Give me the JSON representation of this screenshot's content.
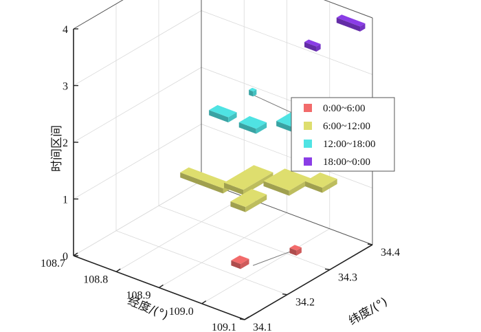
{
  "chart_data": {
    "type": "scatter",
    "title": "",
    "xlabel": "经度/(°)",
    "ylabel": "纬度/(°)",
    "zlabel": "时间区间",
    "xlim": [
      108.7,
      109.1
    ],
    "ylim": [
      34.1,
      34.4
    ],
    "zlim": [
      0,
      4
    ],
    "x_ticks": [
      "108.7",
      "108.8",
      "108.9",
      "109.0",
      "109.1"
    ],
    "y_ticks": [
      "34.1",
      "34.2",
      "34.3",
      "34.4"
    ],
    "z_ticks": [
      "0",
      "1",
      "2",
      "3",
      "4"
    ],
    "grid": true,
    "legend_position": "right",
    "series": [
      {
        "name": "0:00~6:00",
        "color": "#f26b6b",
        "z": 0,
        "clusters": [
          {
            "x": 108.96,
            "y": 34.23,
            "w": 0.022,
            "d": 0.02
          },
          {
            "x": 109.01,
            "y": 34.31,
            "w": 0.016,
            "d": 0.012
          }
        ],
        "links": [
          [
            108.98,
            34.24,
            109.0,
            34.31
          ]
        ]
      },
      {
        "name": "6:00~12:00",
        "color": "#dede6e",
        "z": 1,
        "clusters": [
          {
            "x": 108.85,
            "y": 34.26,
            "w": 0.1,
            "d": 0.02
          },
          {
            "x": 108.91,
            "y": 34.3,
            "w": 0.045,
            "d": 0.07
          },
          {
            "x": 108.97,
            "y": 34.33,
            "w": 0.06,
            "d": 0.05
          },
          {
            "x": 108.96,
            "y": 34.25,
            "w": 0.035,
            "d": 0.05
          },
          {
            "x": 109.02,
            "y": 34.36,
            "w": 0.04,
            "d": 0.035
          }
        ],
        "links": []
      },
      {
        "name": "12:00~18:00",
        "color": "#4fe3e3",
        "z": 2,
        "clusters": [
          {
            "x": 108.85,
            "y": 34.3,
            "w": 0.045,
            "d": 0.02
          },
          {
            "x": 108.92,
            "y": 34.3,
            "w": 0.04,
            "d": 0.025
          },
          {
            "x": 108.98,
            "y": 34.35,
            "w": 0.06,
            "d": 0.05
          },
          {
            "x": 109.02,
            "y": 34.37,
            "w": 0.035,
            "d": 0.03
          },
          {
            "x": 108.99,
            "y": 34.42,
            "w": 0.012,
            "d": 0.01
          },
          {
            "x": 108.84,
            "y": 34.38,
            "w": 0.01,
            "d": 0.008
          }
        ],
        "links": [
          [
            108.84,
            34.38,
            108.96,
            34.37
          ]
        ]
      },
      {
        "name": "18:00~0:00",
        "color": "#8a3de6",
        "z": 3,
        "clusters": [
          {
            "x": 108.95,
            "y": 34.41,
            "w": 0.028,
            "d": 0.01
          },
          {
            "x": 108.95,
            "y": 34.5,
            "w": 0.055,
            "d": 0.012
          }
        ],
        "links": []
      }
    ]
  }
}
